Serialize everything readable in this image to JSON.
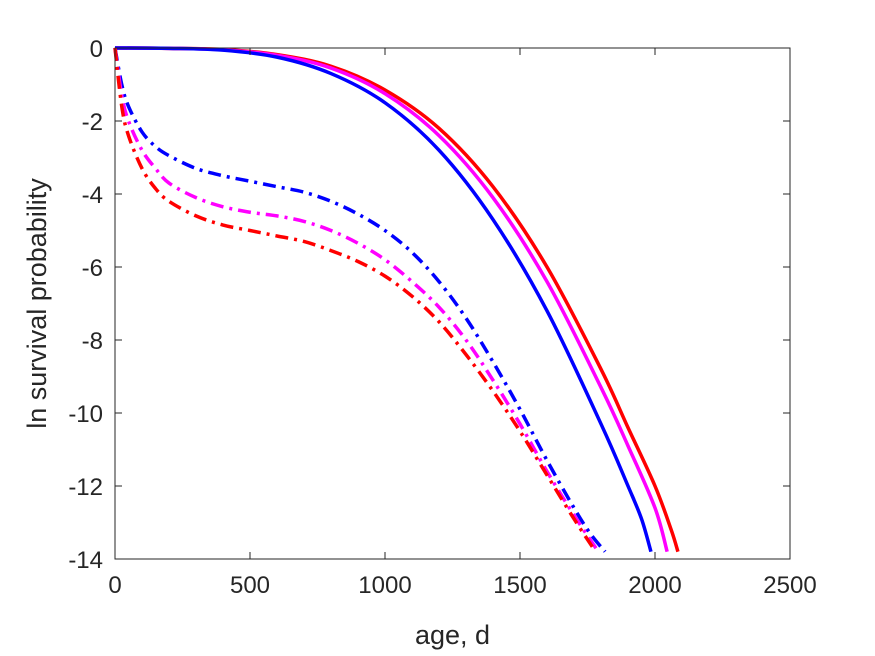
{
  "chart_data": {
    "type": "line",
    "title": "",
    "xlabel": "age, d",
    "ylabel": "ln survival probability",
    "xlim": [
      0,
      2500
    ],
    "ylim": [
      -14,
      0
    ],
    "xticks": [
      0,
      500,
      1000,
      1500,
      2000,
      2500
    ],
    "yticks": [
      0,
      -2,
      -4,
      -6,
      -8,
      -10,
      -12,
      -14
    ],
    "xtick_labels": [
      "0",
      "500",
      "1000",
      "1500",
      "2000",
      "2500"
    ],
    "ytick_labels": [
      "0",
      "-2",
      "-4",
      "-6",
      "-8",
      "-10",
      "-12",
      "-14"
    ],
    "grid": false,
    "legend": "none",
    "series": [
      {
        "color": "#ff0000",
        "style": "solid",
        "points": [
          [
            0,
            0
          ],
          [
            200,
            -0.01
          ],
          [
            400,
            -0.04
          ],
          [
            600,
            -0.18
          ],
          [
            800,
            -0.5
          ],
          [
            1000,
            -1.15
          ],
          [
            1200,
            -2.2
          ],
          [
            1400,
            -3.8
          ],
          [
            1600,
            -6.0
          ],
          [
            1800,
            -8.8
          ],
          [
            1900,
            -10.4
          ],
          [
            2000,
            -12.0
          ],
          [
            2060,
            -13.2
          ],
          [
            2085,
            -13.8
          ]
        ]
      },
      {
        "color": "#ff00ff",
        "style": "solid",
        "points": [
          [
            0,
            0
          ],
          [
            200,
            -0.01
          ],
          [
            400,
            -0.05
          ],
          [
            600,
            -0.2
          ],
          [
            800,
            -0.55
          ],
          [
            1000,
            -1.25
          ],
          [
            1200,
            -2.4
          ],
          [
            1400,
            -4.1
          ],
          [
            1600,
            -6.4
          ],
          [
            1800,
            -9.3
          ],
          [
            1900,
            -10.9
          ],
          [
            2000,
            -12.6
          ],
          [
            2045,
            -13.8
          ]
        ]
      },
      {
        "color": "#0000ff",
        "style": "solid",
        "points": [
          [
            0,
            0
          ],
          [
            200,
            -0.01
          ],
          [
            400,
            -0.06
          ],
          [
            600,
            -0.25
          ],
          [
            800,
            -0.7
          ],
          [
            1000,
            -1.5
          ],
          [
            1200,
            -2.8
          ],
          [
            1400,
            -4.7
          ],
          [
            1600,
            -7.2
          ],
          [
            1800,
            -10.3
          ],
          [
            1900,
            -12.0
          ],
          [
            1950,
            -12.9
          ],
          [
            1985,
            -13.8
          ]
        ]
      },
      {
        "color": "#0000ff",
        "style": "dashdot",
        "points": [
          [
            0,
            0
          ],
          [
            25,
            -1.0
          ],
          [
            50,
            -1.6
          ],
          [
            100,
            -2.3
          ],
          [
            150,
            -2.7
          ],
          [
            200,
            -2.95
          ],
          [
            300,
            -3.3
          ],
          [
            400,
            -3.5
          ],
          [
            500,
            -3.65
          ],
          [
            600,
            -3.8
          ],
          [
            700,
            -3.95
          ],
          [
            800,
            -4.2
          ],
          [
            900,
            -4.55
          ],
          [
            1000,
            -5.0
          ],
          [
            1100,
            -5.6
          ],
          [
            1200,
            -6.4
          ],
          [
            1300,
            -7.4
          ],
          [
            1400,
            -8.6
          ],
          [
            1500,
            -9.9
          ],
          [
            1600,
            -11.3
          ],
          [
            1700,
            -12.6
          ],
          [
            1760,
            -13.3
          ],
          [
            1815,
            -13.8
          ]
        ]
      },
      {
        "color": "#ff00ff",
        "style": "dashdot",
        "points": [
          [
            0,
            0
          ],
          [
            25,
            -1.3
          ],
          [
            50,
            -2.0
          ],
          [
            100,
            -2.8
          ],
          [
            150,
            -3.3
          ],
          [
            200,
            -3.7
          ],
          [
            300,
            -4.1
          ],
          [
            400,
            -4.35
          ],
          [
            500,
            -4.5
          ],
          [
            600,
            -4.6
          ],
          [
            700,
            -4.75
          ],
          [
            800,
            -5.0
          ],
          [
            900,
            -5.35
          ],
          [
            1000,
            -5.8
          ],
          [
            1100,
            -6.4
          ],
          [
            1200,
            -7.1
          ],
          [
            1300,
            -8.0
          ],
          [
            1400,
            -9.1
          ],
          [
            1500,
            -10.3
          ],
          [
            1600,
            -11.6
          ],
          [
            1700,
            -12.8
          ],
          [
            1790,
            -13.8
          ]
        ]
      },
      {
        "color": "#ff0000",
        "style": "dashdot",
        "points": [
          [
            0,
            0
          ],
          [
            25,
            -1.6
          ],
          [
            50,
            -2.4
          ],
          [
            100,
            -3.3
          ],
          [
            150,
            -3.85
          ],
          [
            200,
            -4.2
          ],
          [
            300,
            -4.6
          ],
          [
            400,
            -4.85
          ],
          [
            500,
            -5.0
          ],
          [
            600,
            -5.15
          ],
          [
            700,
            -5.3
          ],
          [
            800,
            -5.55
          ],
          [
            900,
            -5.85
          ],
          [
            1000,
            -6.25
          ],
          [
            1100,
            -6.8
          ],
          [
            1200,
            -7.5
          ],
          [
            1300,
            -8.4
          ],
          [
            1400,
            -9.4
          ],
          [
            1500,
            -10.5
          ],
          [
            1600,
            -11.7
          ],
          [
            1700,
            -12.9
          ],
          [
            1780,
            -13.8
          ]
        ]
      }
    ]
  }
}
